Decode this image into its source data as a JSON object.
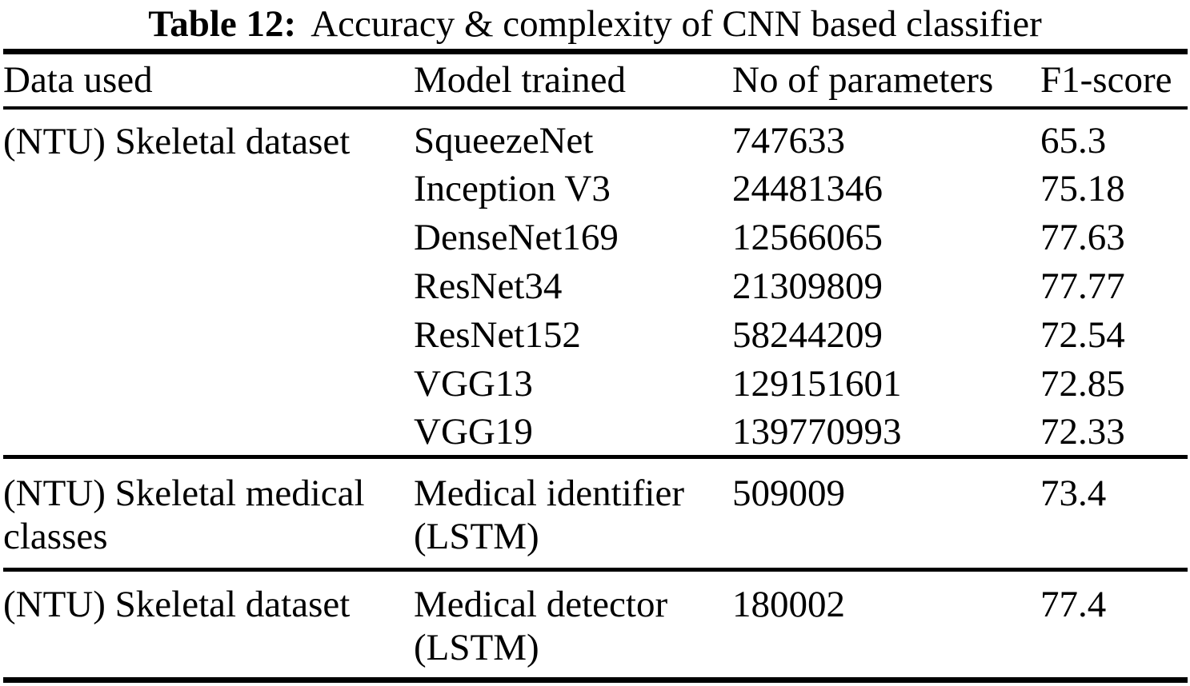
{
  "caption": {
    "label": "Table 12:",
    "text": "Accuracy & complexity of CNN based classifier"
  },
  "colors": {
    "background": "#ffffff",
    "text": "#000000",
    "rule": "#000000"
  },
  "table": {
    "headers": [
      "Data used",
      "Model trained",
      "No of parameters",
      "F1-score"
    ],
    "sections": [
      {
        "data_used": "(NTU) Skeletal dataset",
        "rows": [
          {
            "model": "SqueezeNet",
            "params": "747633",
            "f1": "65.3"
          },
          {
            "model": "Inception V3",
            "params": "24481346",
            "f1": "75.18"
          },
          {
            "model": "DenseNet169",
            "params": "12566065",
            "f1": "77.63"
          },
          {
            "model": "ResNet34",
            "params": "21309809",
            "f1": "77.77"
          },
          {
            "model": "ResNet152",
            "params": "58244209",
            "f1": "72.54"
          },
          {
            "model": "VGG13",
            "params": "129151601",
            "f1": "72.85"
          },
          {
            "model": "VGG19",
            "params": "139770993",
            "f1": "72.33"
          }
        ]
      },
      {
        "data_used": "(NTU) Skeletal medical classes",
        "rows": [
          {
            "model": "Medical identifier (LSTM)",
            "params": "509009",
            "f1": "73.4"
          }
        ]
      },
      {
        "data_used": "(NTU) Skeletal dataset",
        "rows": [
          {
            "model": "Medical detector (LSTM)",
            "params": "180002",
            "f1": "77.4"
          }
        ]
      }
    ]
  }
}
